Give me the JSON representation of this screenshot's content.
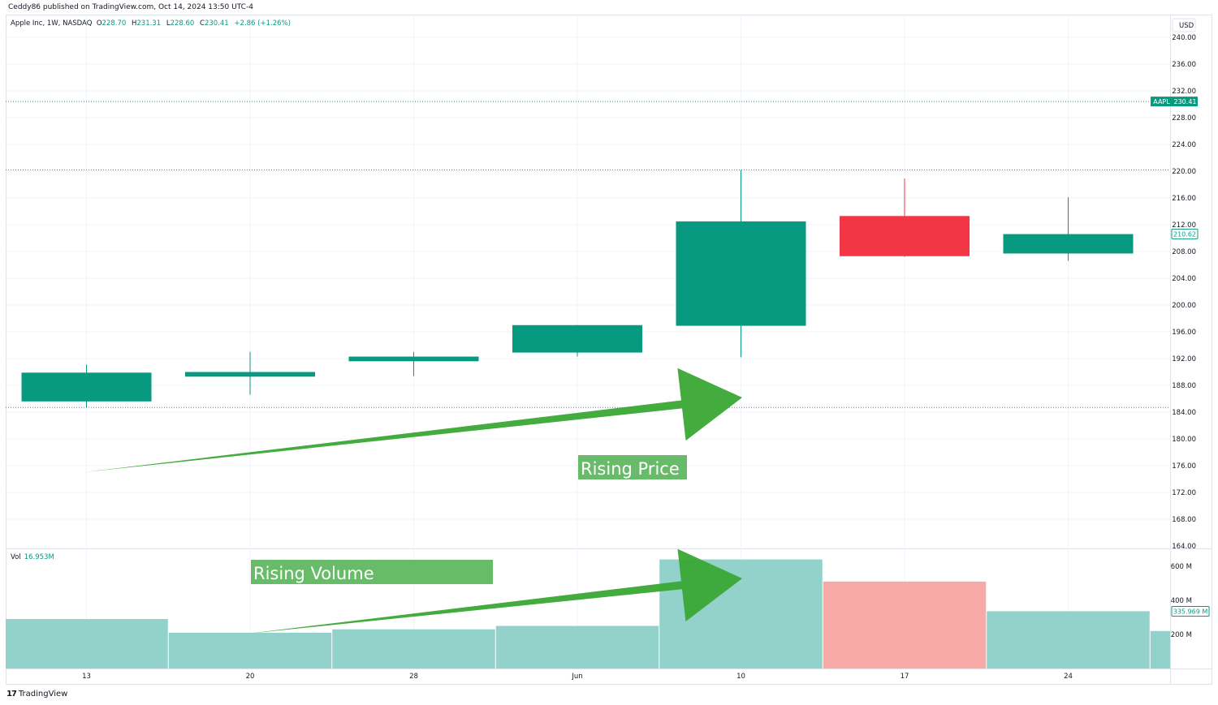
{
  "attribution": "Ceddy86 published on TradingView.com, Oct 14, 2024 13:50 UTC-4",
  "legend": {
    "symbol": "Apple Inc, 1W, NASDAQ",
    "open_label": "O",
    "open": "228.70",
    "high_label": "H",
    "high": "231.31",
    "low_label": "L",
    "low": "228.60",
    "close_label": "C",
    "close": "230.41",
    "change": "+2.86 (+1.26%)"
  },
  "volume_legend": {
    "label": "Vol",
    "value": "16.953M"
  },
  "currency": "USD",
  "footer": {
    "brand": "TradingView",
    "mark": "17"
  },
  "colors": {
    "up": "#089981",
    "down": "#f23645",
    "vol_up": "#92d2cb",
    "vol_down": "#f7a9a7",
    "arrow": "#3aa635",
    "annotation_bg": "#58b458"
  },
  "chart_data": {
    "type": "candlestick",
    "price_axis": {
      "ticks": [
        "240.00",
        "236.00",
        "232.00",
        "228.00",
        "224.00",
        "220.00",
        "216.00",
        "212.00",
        "208.00",
        "204.00",
        "200.00",
        "196.00",
        "192.00",
        "188.00",
        "184.00",
        "180.00",
        "176.00",
        "172.00",
        "168.00",
        "164.00"
      ],
      "ylim": [
        164,
        242
      ]
    },
    "volume_axis": {
      "ticks": [
        "600 M",
        "400 M",
        "200 M"
      ],
      "ylim": [
        0,
        700
      ]
    },
    "x_ticks": [
      {
        "label": "13",
        "index": 0
      },
      {
        "label": "20",
        "index": 1
      },
      {
        "label": "28",
        "index": 2
      },
      {
        "label": "Jun",
        "index": 3
      },
      {
        "label": "10",
        "index": 4
      },
      {
        "label": "17",
        "index": 5
      },
      {
        "label": "24",
        "index": 6
      }
    ],
    "candles": [
      {
        "open": 185.6,
        "high": 191.1,
        "low": 184.7,
        "close": 189.9,
        "volume": 290
      },
      {
        "open": 189.3,
        "high": 193.0,
        "low": 186.6,
        "close": 190.0,
        "volume": 210
      },
      {
        "open": 191.6,
        "high": 193.0,
        "low": 189.4,
        "close": 192.3,
        "volume": 230
      },
      {
        "open": 192.9,
        "high": 197.0,
        "low": 192.3,
        "close": 197.0,
        "volume": 250
      },
      {
        "open": 196.9,
        "high": 220.2,
        "low": 192.2,
        "close": 212.5,
        "volume": 640
      },
      {
        "open": 213.3,
        "high": 218.9,
        "low": 207.2,
        "close": 207.3,
        "volume": 510
      },
      {
        "open": 207.7,
        "high": 216.1,
        "low": 206.6,
        "close": 210.6,
        "volume": 335.969
      }
    ],
    "trailing_volume": 220,
    "price_lines": [
      {
        "label": "AAPL",
        "value": "230.41",
        "y": 230.41,
        "style": "dotted",
        "color": "#089981"
      },
      {
        "y": 220.2,
        "style": "dotted",
        "color": "#787b86"
      },
      {
        "y": 184.7,
        "style": "dotted",
        "color": "#787b86"
      }
    ],
    "price_marker": {
      "value": "210.62",
      "y": 210.62
    },
    "volume_marker": {
      "value": "335.969 M",
      "y": 335.969
    },
    "annotations": [
      {
        "text": "Rising Price",
        "pane": "price"
      },
      {
        "text": "Rising Volume",
        "pane": "volume"
      }
    ]
  }
}
